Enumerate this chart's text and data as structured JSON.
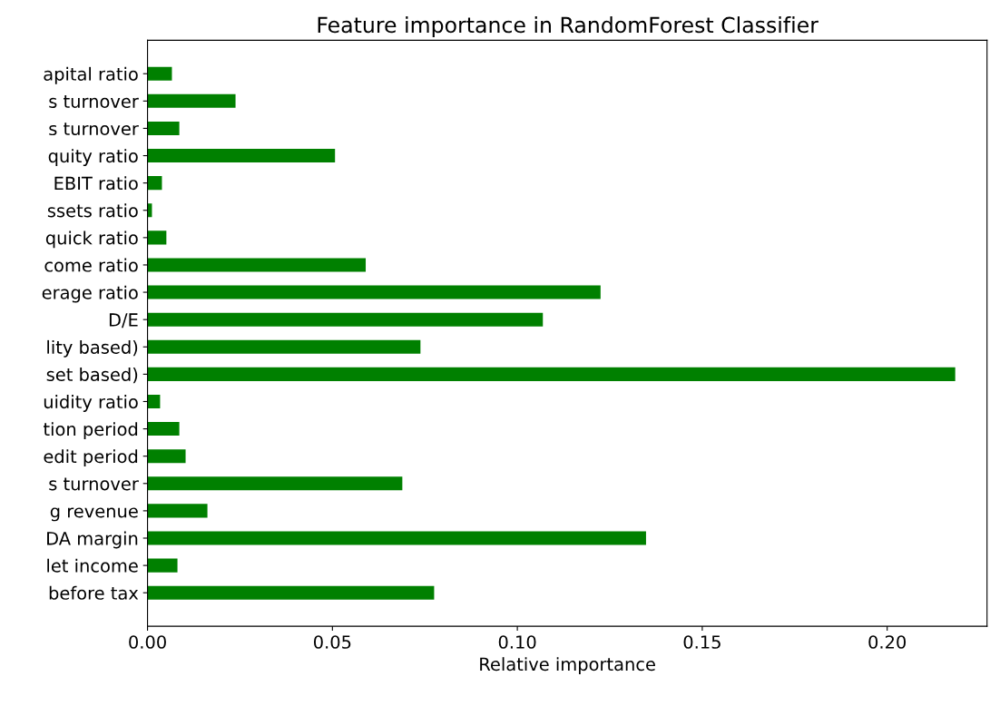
{
  "chart_data": {
    "type": "bar",
    "orientation": "horizontal",
    "title": "Feature importance in RandomForest Classifier",
    "xlabel": "Relative importance",
    "categories": [
      "apital ratio",
      "s turnover",
      "s turnover",
      "quity ratio",
      "EBIT ratio",
      "ssets ratio",
      "quick ratio",
      "come ratio",
      "erage ratio",
      "D/E",
      "lity based)",
      "set based)",
      "uidity ratio",
      "tion period",
      "edit period",
      "s turnover",
      "g revenue",
      "DA margin",
      "let income",
      "before tax"
    ],
    "values": [
      0.0066,
      0.0238,
      0.0086,
      0.0507,
      0.0039,
      0.0012,
      0.0051,
      0.059,
      0.1225,
      0.1069,
      0.0738,
      0.2184,
      0.0034,
      0.0086,
      0.0103,
      0.0689,
      0.0162,
      0.1348,
      0.0081,
      0.0775
    ],
    "color": "#008000",
    "xlim": [
      0,
      0.227
    ],
    "xticks": [
      {
        "value": 0,
        "label": "0.00"
      },
      {
        "value": 0.05,
        "label": "0.05"
      },
      {
        "value": 0.1,
        "label": "0.10"
      },
      {
        "value": 0.15,
        "label": "0.15"
      },
      {
        "value": 0.2,
        "label": "0.20"
      }
    ],
    "grid": false
  }
}
